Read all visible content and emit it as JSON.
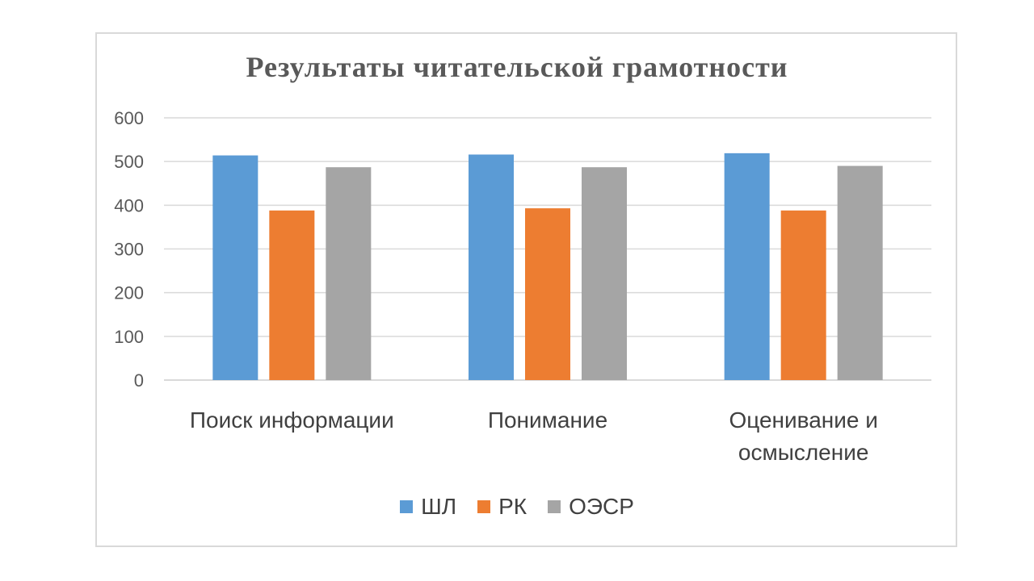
{
  "chart_data": {
    "type": "bar",
    "title": "Результаты читательской грамотности",
    "categories": [
      "Поиск информации",
      "Понимание",
      "Оценивание и осмысление"
    ],
    "category_lines": [
      [
        "Поиск информации"
      ],
      [
        "Понимание"
      ],
      [
        "Оценивание и",
        "осмысление"
      ]
    ],
    "series": [
      {
        "name": "ШЛ",
        "color": "#5b9bd5",
        "values": [
          514,
          516,
          519
        ]
      },
      {
        "name": "РК",
        "color": "#ed7d31",
        "values": [
          388,
          393,
          388
        ]
      },
      {
        "name": "ОЭСР",
        "color": "#a5a5a5",
        "values": [
          487,
          487,
          490
        ]
      }
    ],
    "ylim": [
      0,
      600
    ],
    "yticks": [
      0,
      100,
      200,
      300,
      400,
      500,
      600
    ],
    "grid": true,
    "legend": "bottom",
    "xlabel": "",
    "ylabel": ""
  }
}
